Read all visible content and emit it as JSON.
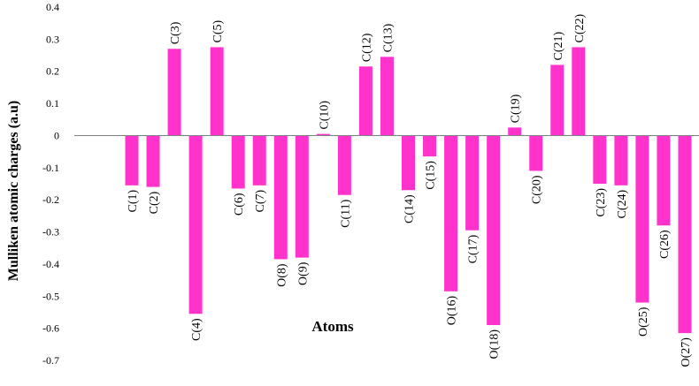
{
  "chart_data": {
    "type": "bar",
    "title": "",
    "xlabel": "Atoms",
    "ylabel": "Mulliken atomic charges (a.u)",
    "ylim": [
      -0.7,
      0.4
    ],
    "yticks": [
      0.4,
      0.3,
      0.2,
      0.1,
      0,
      -0.1,
      -0.2,
      -0.3,
      -0.4,
      -0.5,
      -0.6,
      -0.7
    ],
    "ytick_labels": [
      "0.4",
      "0.3",
      "0.2",
      "0.1",
      "0",
      "-0.1",
      "-0.2",
      "-0.3",
      "-0.4",
      "-0.5",
      "-0.6",
      "-0.7"
    ],
    "grid": false,
    "legend": "none",
    "bar_color": "#ff33cc",
    "categories": [
      "C(1)",
      "C(2)",
      "C(3)",
      "C(4)",
      "C(5)",
      "C(6)",
      "C(7)",
      "O(8)",
      "O(9)",
      "C(10)",
      "C(11)",
      "C(12)",
      "C(13)",
      "C(14)",
      "C(15)",
      "O(16)",
      "C(17)",
      "O(18)",
      "C(19)",
      "C(20)",
      "C(21)",
      "C(22)",
      "C(23)",
      "C(24)",
      "O(25)",
      "C(26)",
      "O(27)"
    ],
    "values": [
      -0.155,
      -0.16,
      0.27,
      -0.555,
      0.275,
      -0.165,
      -0.155,
      -0.385,
      -0.38,
      0.005,
      -0.185,
      0.215,
      0.245,
      -0.17,
      -0.065,
      -0.485,
      -0.295,
      -0.59,
      0.025,
      -0.11,
      0.22,
      0.275,
      -0.15,
      -0.155,
      -0.52,
      -0.28,
      -0.615
    ]
  }
}
